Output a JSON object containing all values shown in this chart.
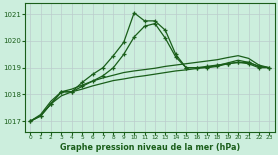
{
  "title": "Graphe pression niveau de la mer (hPa)",
  "bg_color": "#cceedd",
  "grid_color": "#bbcccc",
  "line_color": "#1a5e1a",
  "xlim": [
    -0.5,
    23.5
  ],
  "ylim": [
    1016.6,
    1021.4
  ],
  "yticks": [
    1017,
    1018,
    1019,
    1020,
    1021
  ],
  "xticks": [
    0,
    1,
    2,
    3,
    4,
    5,
    6,
    7,
    8,
    9,
    10,
    11,
    12,
    13,
    14,
    15,
    16,
    17,
    18,
    19,
    20,
    21,
    22,
    23
  ],
  "series": [
    {
      "y": [
        1017.0,
        1017.2,
        1017.65,
        1018.1,
        1018.1,
        1018.45,
        1018.75,
        1019.0,
        1019.45,
        1019.95,
        1021.05,
        1020.75,
        1020.75,
        1020.4,
        1019.5,
        1019.0,
        1019.0,
        1019.0,
        1019.05,
        1019.15,
        1019.2,
        1019.15,
        1019.0,
        1019.0
      ],
      "marker": true,
      "lw": 0.9
    },
    {
      "y": [
        1017.0,
        1017.2,
        1017.65,
        1018.1,
        1018.1,
        1018.3,
        1018.5,
        1018.7,
        1019.0,
        1019.5,
        1020.15,
        1020.55,
        1020.65,
        1020.1,
        1019.4,
        1019.0,
        1019.0,
        1019.05,
        1019.1,
        1019.15,
        1019.2,
        1019.2,
        1019.05,
        1019.0
      ],
      "marker": true,
      "lw": 0.9
    },
    {
      "y": [
        1017.0,
        1017.25,
        1017.75,
        1018.1,
        1018.2,
        1018.35,
        1018.5,
        1018.62,
        1018.72,
        1018.82,
        1018.88,
        1018.93,
        1018.98,
        1019.05,
        1019.1,
        1019.15,
        1019.2,
        1019.25,
        1019.3,
        1019.38,
        1019.45,
        1019.35,
        1019.1,
        1019.0
      ],
      "marker": false,
      "lw": 0.9
    },
    {
      "y": [
        1017.0,
        1017.2,
        1017.65,
        1017.95,
        1018.1,
        1018.2,
        1018.32,
        1018.42,
        1018.52,
        1018.58,
        1018.65,
        1018.7,
        1018.76,
        1018.82,
        1018.88,
        1018.92,
        1018.97,
        1019.02,
        1019.08,
        1019.18,
        1019.28,
        1019.2,
        1019.05,
        1019.0
      ],
      "marker": false,
      "lw": 0.9
    }
  ]
}
